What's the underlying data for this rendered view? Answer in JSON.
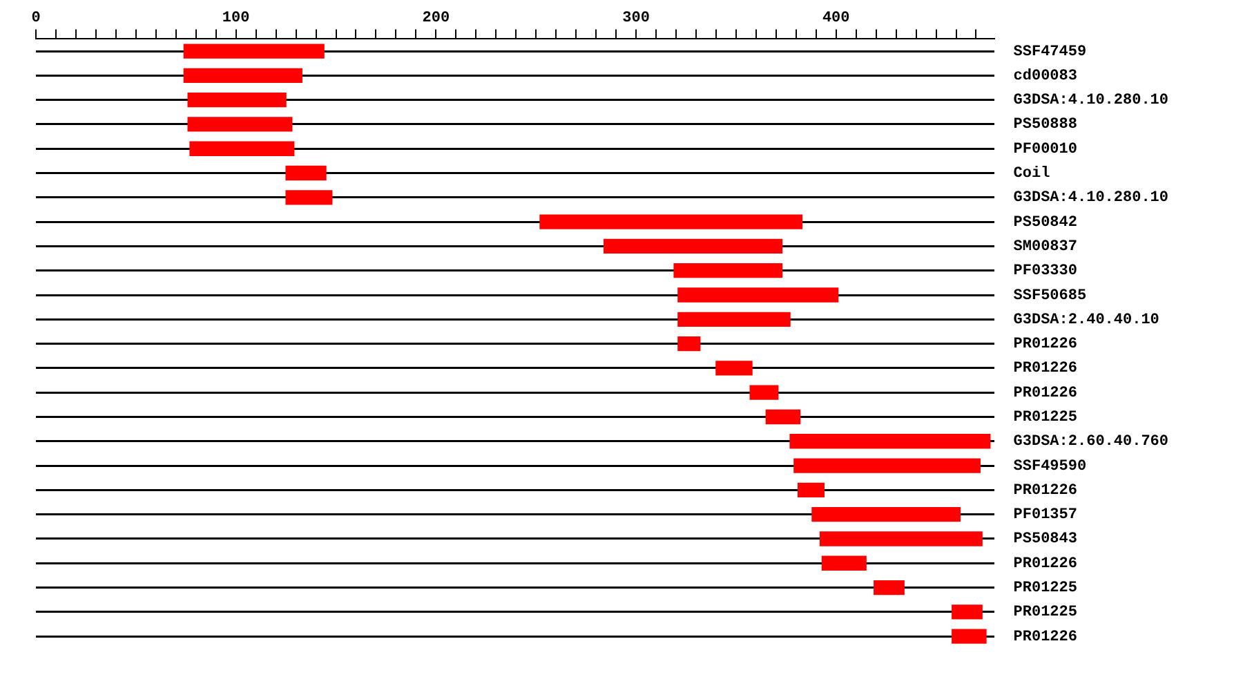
{
  "chart_data": {
    "type": "bar",
    "orientation": "horizontal",
    "grid": "y",
    "categories": [
      "SSF47459",
      "cd00083",
      "G3DSA:4.10.280.10",
      "PS50888",
      "PF00010",
      "Coil",
      "G3DSA:4.10.280.10",
      "PS50842",
      "SM00837",
      "PF03330",
      "SSF50685",
      "G3DSA:2.40.40.10",
      "PR01226",
      "PR01226",
      "PR01226",
      "PR01225",
      "G3DSA:2.60.40.760",
      "SSF49590",
      "PR01226",
      "PF01357",
      "PS50843",
      "PR01226",
      "PR01225",
      "PR01225",
      "PR01226"
    ],
    "base": [
      74,
      74,
      76,
      76,
      77,
      125,
      125,
      252,
      284,
      319,
      321,
      321,
      321,
      340,
      357,
      365,
      377,
      379,
      381,
      388,
      392,
      393,
      419,
      458,
      458
    ],
    "values": [
      70,
      59,
      49,
      52,
      52,
      20,
      23,
      131,
      89,
      54,
      80,
      56,
      11,
      18,
      14,
      17,
      100,
      93,
      13,
      74,
      81,
      22,
      15,
      15,
      17
    ],
    "color": "#ff0000",
    "xlim": [
      0,
      479
    ],
    "xticks": [
      0,
      {
        "value": 10,
        "label": null
      },
      {
        "value": 20,
        "label": null
      },
      {
        "value": 30,
        "label": null
      },
      {
        "value": 40,
        "label": null
      },
      {
        "value": 50,
        "label": null
      },
      {
        "value": 60,
        "label": null
      },
      {
        "value": 70,
        "label": null
      },
      {
        "value": 80,
        "label": null
      },
      {
        "value": 90,
        "label": null
      },
      100,
      {
        "value": 110,
        "label": null
      },
      {
        "value": 120,
        "label": null
      },
      {
        "value": 130,
        "label": null
      },
      {
        "value": 140,
        "label": null
      },
      {
        "value": 150,
        "label": null
      },
      {
        "value": 160,
        "label": null
      },
      {
        "value": 170,
        "label": null
      },
      {
        "value": 180,
        "label": null
      },
      {
        "value": 190,
        "label": null
      },
      200,
      {
        "value": 210,
        "label": null
      },
      {
        "value": 220,
        "label": null
      },
      {
        "value": 230,
        "label": null
      },
      {
        "value": 240,
        "label": null
      },
      {
        "value": 250,
        "label": null
      },
      {
        "value": 260,
        "label": null
      },
      {
        "value": 270,
        "label": null
      },
      {
        "value": 280,
        "label": null
      },
      {
        "value": 290,
        "label": null
      },
      300,
      {
        "value": 310,
        "label": null
      },
      {
        "value": 320,
        "label": null
      },
      {
        "value": 330,
        "label": null
      },
      {
        "value": 340,
        "label": null
      },
      {
        "value": 350,
        "label": null
      },
      {
        "value": 360,
        "label": null
      },
      {
        "value": 370,
        "label": null
      },
      {
        "value": 380,
        "label": null
      },
      {
        "value": 390,
        "label": null
      },
      400,
      {
        "value": 410,
        "label": null
      },
      {
        "value": 420,
        "label": null
      },
      {
        "value": 430,
        "label": null
      },
      {
        "value": 440,
        "label": null
      },
      {
        "value": 450,
        "label": null
      },
      {
        "value": 460,
        "label": null
      },
      {
        "value": 470,
        "label": null
      }
    ]
  }
}
